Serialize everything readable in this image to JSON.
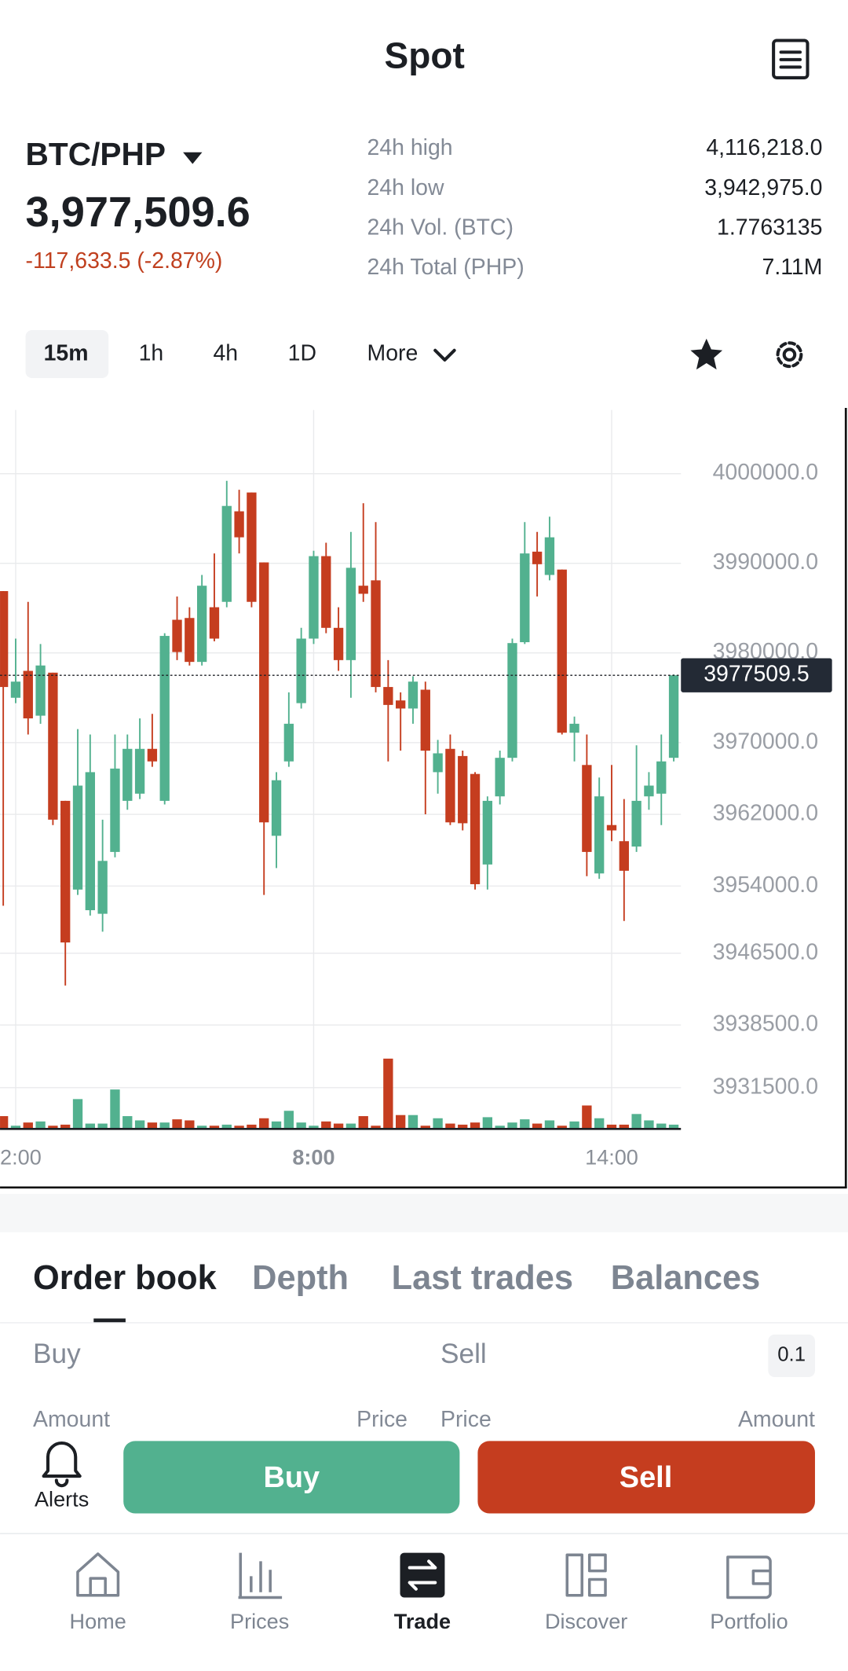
{
  "header": {
    "title": "Spot"
  },
  "ticker": {
    "pair": "BTC/PHP",
    "price": "3,977,509.6",
    "change": "-117,633.5 (-2.87%)",
    "stats": [
      {
        "label": "24h high",
        "value": "4,116,218.0"
      },
      {
        "label": "24h low",
        "value": "3,942,975.0"
      },
      {
        "label": "24h Vol. (BTC)",
        "value": "1.7763135"
      },
      {
        "label": "24h Total (PHP)",
        "value": "7.11M"
      }
    ]
  },
  "intervals": [
    "15m",
    "1h",
    "4h",
    "1D",
    "More"
  ],
  "chart_data": {
    "type": "candlestick",
    "up_color": "#52b18f",
    "down_color": "#c53d1f",
    "grid": true,
    "xlim": [
      -0.26,
      54.58
    ],
    "xticks": [
      {
        "value": 1,
        "label": "2:00"
      },
      {
        "value": 25,
        "label": "8:00"
      },
      {
        "value": 49,
        "label": "14:00"
      }
    ],
    "ylim": [
      3926900,
      4007100
    ],
    "yticks": [
      {
        "value": 4000000,
        "label": "4000000.0"
      },
      {
        "value": 3990000,
        "label": "3990000.0"
      },
      {
        "value": 3980000,
        "label": "3980000.0"
      },
      {
        "value": 3970000,
        "label": "3970000.0"
      },
      {
        "value": 3962000,
        "label": "3962000.0"
      },
      {
        "value": 3954000,
        "label": "3954000.0"
      },
      {
        "value": 3946500,
        "label": "3946500.0"
      },
      {
        "value": 3938500,
        "label": "3938500.0"
      },
      {
        "value": 3931500,
        "label": "3931500.0"
      }
    ],
    "last_price": 3977509.5,
    "open": [
      3986900,
      3975000,
      3978000,
      3973000,
      3977800,
      3963500,
      3953600,
      3951300,
      3950900,
      3957800,
      3963500,
      3964300,
      3969300,
      3963500,
      3983700,
      3983900,
      3979000,
      3985100,
      3985700,
      3995800,
      3997900,
      3990100,
      3959600,
      3967900,
      3974400,
      3981600,
      3990800,
      3982800,
      3979200,
      3987500,
      3988100,
      3976200,
      3974700,
      3973800,
      3975900,
      3966700,
      3969300,
      3968500,
      3966500,
      3956400,
      3964000,
      3968300,
      3981200,
      3991300,
      3988700,
      3989300,
      3971100,
      3967500,
      3955400,
      3960800,
      3959000,
      3958400,
      3964000,
      3964300,
      3968300
    ],
    "high": [
      3986900,
      3981600,
      3985700,
      3981000,
      3977800,
      3963500,
      3971500,
      3970900,
      3961400,
      3970900,
      3970900,
      3972700,
      3973200,
      3982200,
      3986300,
      3985100,
      3988700,
      3991100,
      3999200,
      3998200,
      3997900,
      3990100,
      3966700,
      3975600,
      3982800,
      3991400,
      3992300,
      3985100,
      3993500,
      3996700,
      3994600,
      3979200,
      3975600,
      3977400,
      3976800,
      3970300,
      3970900,
      3969100,
      3966700,
      3964000,
      3969100,
      3981600,
      3994600,
      3993500,
      3995200,
      3989300,
      3972900,
      3970900,
      3966100,
      3967500,
      3963700,
      3969700,
      3966700,
      3970900,
      3977600
    ],
    "low": [
      3951800,
      3974400,
      3970900,
      3972100,
      3960800,
      3942900,
      3953000,
      3950700,
      3948900,
      3957200,
      3962500,
      3963700,
      3967300,
      3963100,
      3979200,
      3978600,
      3978600,
      3981300,
      3985100,
      3991100,
      3985100,
      3953000,
      3956000,
      3967300,
      3973800,
      3981000,
      3982200,
      3978000,
      3975000,
      3985700,
      3975600,
      3967900,
      3969100,
      3972100,
      3962000,
      3964300,
      3960800,
      3960200,
      3953600,
      3953600,
      3963100,
      3967900,
      3981000,
      3986300,
      3988100,
      3970900,
      3967900,
      3955100,
      3954800,
      3959000,
      3950100,
      3957800,
      3962500,
      3960800,
      3967900
    ],
    "close": [
      3976200,
      3976800,
      3972700,
      3978600,
      3961400,
      3947700,
      3965200,
      3966700,
      3956800,
      3967100,
      3969300,
      3969300,
      3967900,
      3981900,
      3980100,
      3979000,
      3987500,
      3981600,
      3996400,
      3992900,
      3985700,
      3961100,
      3965800,
      3972100,
      3981600,
      3990800,
      3982800,
      3979200,
      3989500,
      3986600,
      3976200,
      3974200,
      3973800,
      3976800,
      3969100,
      3968800,
      3961100,
      3961000,
      3954200,
      3963500,
      3968300,
      3981100,
      3991100,
      3989900,
      3992900,
      3971100,
      3972100,
      3957800,
      3964000,
      3960200,
      3955700,
      3963500,
      3965200,
      3967900,
      3977509.5
    ],
    "volume": [
      12,
      3,
      6,
      7,
      3,
      4,
      28,
      5,
      5,
      37,
      12,
      8,
      6,
      6,
      9,
      8,
      3,
      3,
      4,
      3,
      4,
      10,
      7,
      17,
      6,
      3,
      7,
      5,
      5,
      12,
      3,
      66,
      13,
      13,
      3,
      10,
      5,
      4,
      6,
      11,
      3,
      6,
      9,
      5,
      8,
      3,
      7,
      22,
      10,
      4,
      4,
      14,
      8,
      5,
      4
    ],
    "volume_ylim": [
      0,
      75
    ]
  },
  "tabs": [
    "Order book",
    "Depth",
    "Last trades",
    "Balances"
  ],
  "order_book": {
    "buy": "Buy",
    "sell": "Sell",
    "step": "0.1",
    "columns": [
      "Amount",
      "Price",
      "Price",
      "Amount"
    ]
  },
  "actions": {
    "alerts": "Alerts",
    "buy": "Buy",
    "sell": "Sell"
  },
  "nav": [
    "Home",
    "Prices",
    "Trade",
    "Discover",
    "Portfolio"
  ]
}
